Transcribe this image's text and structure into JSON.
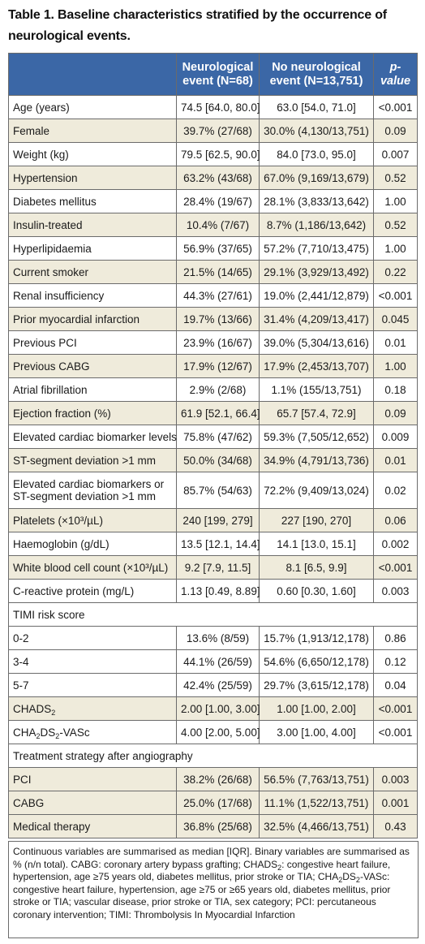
{
  "title": "Table 1. Baseline characteristics stratified by the occurrence of neurological events.",
  "headers": {
    "col2": "Neurological event (N=68)",
    "col3": "No neurological event (N=13,751)",
    "col4": "p-value"
  },
  "rows": [
    {
      "label": "Age (years)",
      "a": "74.5 [64.0, 80.0]",
      "b": "63.0 [54.0, 71.0]",
      "p": "<0.001"
    },
    {
      "label": "Female",
      "a": "39.7% (27/68)",
      "b": "30.0% (4,130/13,751)",
      "p": "0.09"
    },
    {
      "label": "Weight (kg)",
      "a": "79.5 [62.5, 90.0]",
      "b": "84.0 [73.0, 95.0]",
      "p": "0.007"
    },
    {
      "label": "Hypertension",
      "a": "63.2% (43/68)",
      "b": "67.0% (9,169/13,679)",
      "p": "0.52"
    },
    {
      "label": "Diabetes mellitus",
      "a": "28.4% (19/67)",
      "b": "28.1% (3,833/13,642)",
      "p": "1.00"
    },
    {
      "label": "Insulin-treated",
      "a": "10.4% (7/67)",
      "b": "8.7% (1,186/13,642)",
      "p": "0.52"
    },
    {
      "label": "Hyperlipidaemia",
      "a": "56.9% (37/65)",
      "b": "57.2% (7,710/13,475)",
      "p": "1.00"
    },
    {
      "label": "Current smoker",
      "a": "21.5% (14/65)",
      "b": "29.1% (3,929/13,492)",
      "p": "0.22"
    },
    {
      "label": "Renal insufficiency",
      "a": "44.3% (27/61)",
      "b": "19.0% (2,441/12,879)",
      "p": "<0.001"
    },
    {
      "label": "Prior myocardial infarction",
      "a": "19.7% (13/66)",
      "b": "31.4% (4,209/13,417)",
      "p": "0.045"
    },
    {
      "label": "Previous PCI",
      "a": "23.9% (16/67)",
      "b": "39.0% (5,304/13,616)",
      "p": "0.01"
    },
    {
      "label": "Previous CABG",
      "a": "17.9% (12/67)",
      "b": "17.9% (2,453/13,707)",
      "p": "1.00"
    },
    {
      "label": "Atrial fibrillation",
      "a": "2.9% (2/68)",
      "b": "1.1% (155/13,751)",
      "p": "0.18"
    },
    {
      "label": "Ejection fraction (%)",
      "a": "61.9 [52.1, 66.4]",
      "b": "65.7 [57.4, 72.9]",
      "p": "0.09"
    },
    {
      "label": "Elevated cardiac biomarker levels",
      "a": "75.8% (47/62)",
      "b": "59.3% (7,505/12,652)",
      "p": "0.009"
    },
    {
      "label": "ST-segment deviation >1 mm",
      "a": "50.0% (34/68)",
      "b": "34.9% (4,791/13,736)",
      "p": "0.01"
    },
    {
      "label": "Elevated cardiac biomarkers or ST-segment deviation >1 mm",
      "a": "85.7% (54/63)",
      "b": "72.2% (9,409/13,024)",
      "p": "0.02"
    },
    {
      "label": "Platelets (×10³/µL)",
      "a": "240 [199, 279]",
      "b": "227 [190, 270]",
      "p": "0.06"
    },
    {
      "label": "Haemoglobin (g/dL)",
      "a": "13.5 [12.1, 14.4]",
      "b": "14.1 [13.0, 15.1]",
      "p": "0.002"
    },
    {
      "label": "White blood cell count (×10³/µL)",
      "a": "9.2 [7.9, 11.5]",
      "b": "8.1 [6.5, 9.9]",
      "p": "<0.001"
    },
    {
      "label": "C-reactive protein (mg/L)",
      "a": "1.13 [0.49, 8.89]",
      "b": "0.60 [0.30, 1.60]",
      "p": "0.003"
    }
  ],
  "timi": {
    "label": "TIMI risk score",
    "rows": [
      {
        "label": "0-2",
        "a": "13.6% (8/59)",
        "b": "15.7% (1,913/12,178)",
        "p": "0.86"
      },
      {
        "label": "3-4",
        "a": "44.1% (26/59)",
        "b": "54.6% (6,650/12,178)",
        "p": "0.12"
      },
      {
        "label": "5-7",
        "a": "42.4% (25/59)",
        "b": "29.7% (3,615/12,178)",
        "p": "0.04"
      }
    ]
  },
  "chads": {
    "chads2_label_main": "CHADS",
    "chads2_label_sub": "2",
    "chads2_a": "2.00 [1.00, 3.00]",
    "chads2_b": "1.00 [1.00, 2.00]",
    "chads2_p": "<0.001",
    "vasc_label_part1": "CHA",
    "vasc_label_sub1": "2",
    "vasc_label_part2": "DS",
    "vasc_label_sub2": "2",
    "vasc_label_part3": "-VASc",
    "vasc_a": "4.00 [2.00, 5.00]",
    "vasc_b": "3.00 [1.00, 4.00]",
    "vasc_p": "<0.001"
  },
  "treatment": {
    "label": "Treatment strategy after angiography",
    "rows": [
      {
        "label": "PCI",
        "a": "38.2% (26/68)",
        "b": "56.5% (7,763/13,751)",
        "p": "0.003"
      },
      {
        "label": "CABG",
        "a": "25.0% (17/68)",
        "b": "11.1% (1,522/13,751)",
        "p": "0.001"
      },
      {
        "label": "Medical therapy",
        "a": "36.8% (25/68)",
        "b": "32.5% (4,466/13,751)",
        "p": "0.43"
      }
    ]
  },
  "footnote": {
    "part1": "Continuous variables are summarised as median [IQR]. Binary variables are summarised as % (n/n total). CABG: coronary artery bypass grafting; CHADS",
    "sub1": "2",
    "part2": ": congestive heart failure, hypertension, age ≥75 years old, diabetes mellitus, prior stroke or TIA; CHA",
    "sub2": "2",
    "part3": "DS",
    "sub3": "2",
    "part4": "-VASc: congestive heart failure, hypertension, age ≥75 or ≥65 years old, diabetes mellitus, prior stroke or TIA; vascular disease, prior stroke or TIA, sex category; PCI: percutaneous coronary intervention; TIMI: Thrombolysis In Myocardial Infarction"
  },
  "colors": {
    "header_bg": "#3b67a6",
    "alt_row_bg": "#efebdb",
    "border": "#6b6b6b"
  }
}
